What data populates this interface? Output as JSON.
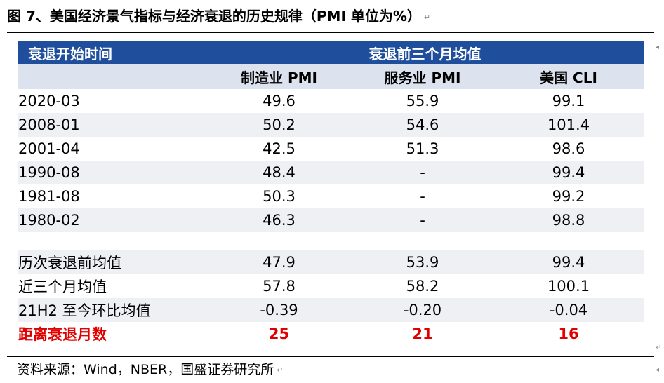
{
  "title": "图 7、美国经济景气指标与经济衰退的历史规律（PMI 单位为%）",
  "table": {
    "header_row_label": "衰退开始时间",
    "header_group": "衰退前三个月均值",
    "columns": [
      "制造业 PMI",
      "服务业 PMI",
      "美国 CLI"
    ],
    "rows": [
      {
        "label": "2020-03",
        "values": [
          "49.6",
          "55.9",
          "99.1"
        ]
      },
      {
        "label": "2008-01",
        "values": [
          "50.2",
          "54.6",
          "101.4"
        ]
      },
      {
        "label": "2001-04",
        "values": [
          "42.5",
          "51.3",
          "98.6"
        ]
      },
      {
        "label": "1990-08",
        "values": [
          "48.4",
          "-",
          "99.4"
        ]
      },
      {
        "label": "1981-08",
        "values": [
          "50.3",
          "-",
          "99.2"
        ]
      },
      {
        "label": "1980-02",
        "values": [
          "46.3",
          "-",
          "98.8"
        ]
      }
    ],
    "summary_rows": [
      {
        "label": "历次衰退前均值",
        "values": [
          "47.9",
          "53.9",
          "99.4"
        ]
      },
      {
        "label": "近三个月均值",
        "values": [
          "57.8",
          "58.2",
          "100.1"
        ]
      },
      {
        "label": "21H2 至今环比均值",
        "values": [
          "-0.39",
          "-0.20",
          "-0.04"
        ]
      }
    ],
    "highlight_row": {
      "label": "距离衰退月数",
      "values": [
        "25",
        "21",
        "16"
      ]
    }
  },
  "source": "资料来源：Wind，NBER，国盛证券研究所",
  "colors": {
    "header_bg": "#1f4e9c",
    "subheader_bg": "#dde3ee",
    "stripe_bg": "#eef0f4",
    "highlight_text": "#e00000"
  }
}
